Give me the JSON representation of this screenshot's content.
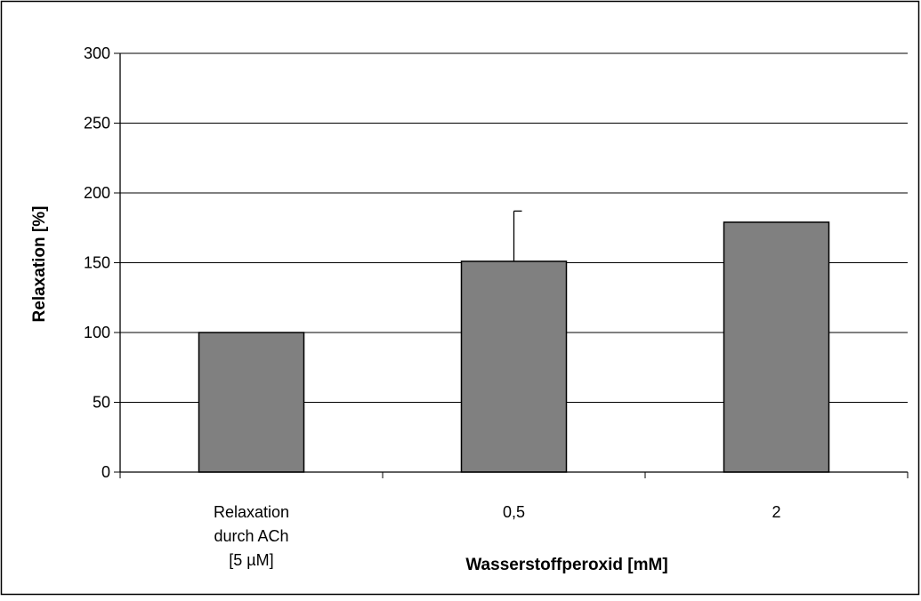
{
  "chart_data": {
    "type": "bar",
    "title": "",
    "xlabel": "Wasserstoffperoxid [mM]",
    "ylabel": "Relaxation [%]",
    "ylim": [
      0,
      300
    ],
    "yticks": [
      0,
      50,
      100,
      150,
      200,
      250,
      300
    ],
    "ytick_labels": [
      "0",
      "50",
      "100",
      "150",
      "200",
      "250",
      "300"
    ],
    "grid": true,
    "legend": "none",
    "categories": [
      [
        "Relaxation",
        "durch ACh",
        " [5 µM]"
      ],
      [
        "0,5"
      ],
      [
        "2"
      ]
    ],
    "values": [
      100,
      151,
      179
    ],
    "error_upper": [
      0,
      36,
      0
    ],
    "bar_color": "#808080",
    "bar_edge_color": "#000000"
  }
}
